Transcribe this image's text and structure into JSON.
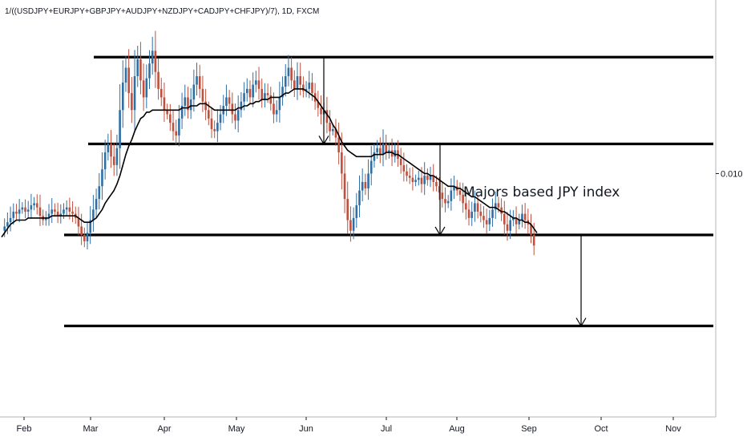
{
  "chart_data": {
    "type": "candlestick",
    "title": "1/((USDJPY+EURJPY+GBPJPY+AUDJPY+NZDJPY+CADJPY+CHFJPY)/7), 1D, FXCM",
    "x_tick_labels": [
      "Feb",
      "Mar",
      "Apr",
      "May",
      "Jun",
      "Jul",
      "Aug",
      "Sep",
      "Oct",
      "Nov"
    ],
    "y_tick_labels": [
      {
        "value": 0.01,
        "label": "0.010"
      }
    ],
    "ylim": [
      0.00885,
      0.01082
    ],
    "annotation": "Majors based JPY index",
    "colors": {
      "up": "#2e6fa6",
      "down": "#c0503d",
      "ma": "#000000",
      "level": "#000000",
      "axis": "#131722"
    },
    "levels": [
      {
        "value": 0.01055,
        "from": "Mar",
        "to": "Nov"
      },
      {
        "value": 0.01014,
        "from": "Mar",
        "to": "Nov"
      },
      {
        "value": 0.00971,
        "from": "Feb",
        "to": "Nov"
      },
      {
        "value": 0.00928,
        "from": "Feb",
        "to": "Nov"
      }
    ],
    "projection_arrows": [
      {
        "x": "Jun",
        "from": 0.01055,
        "to": 0.01014
      },
      {
        "x": "Jul",
        "from": 0.01014,
        "to": 0.00971
      },
      {
        "x": "Sep",
        "from": 0.00971,
        "to": 0.00928
      }
    ],
    "series": {
      "close": [
        0.00973,
        0.00975,
        0.00977,
        0.00979,
        0.00982,
        0.00981,
        0.00983,
        0.00984,
        0.00982,
        0.00983,
        0.00985,
        0.00986,
        0.00984,
        0.0098,
        0.00978,
        0.00979,
        0.00981,
        0.00983,
        0.00982,
        0.0098,
        0.00981,
        0.00983,
        0.00984,
        0.00982,
        0.00981,
        0.00979,
        0.00975,
        0.00971,
        0.00968,
        0.00972,
        0.00978,
        0.00983,
        0.00988,
        0.00994,
        0.01002,
        0.0101,
        0.01014,
        0.01008,
        0.01004,
        0.01012,
        0.0103,
        0.01043,
        0.0105,
        0.01038,
        0.0103,
        0.01046,
        0.01054,
        0.01044,
        0.01036,
        0.01045,
        0.01052,
        0.01058,
        0.01048,
        0.0104,
        0.01036,
        0.0103,
        0.01028,
        0.01024,
        0.0102,
        0.01018,
        0.01026,
        0.01032,
        0.01036,
        0.0103,
        0.01035,
        0.01042,
        0.01046,
        0.0104,
        0.01034,
        0.0103,
        0.01026,
        0.01021,
        0.0102,
        0.01024,
        0.01028,
        0.01032,
        0.01036,
        0.01033,
        0.01028,
        0.01025,
        0.0103,
        0.01034,
        0.01038,
        0.0104,
        0.01036,
        0.01042,
        0.01044,
        0.0104,
        0.01035,
        0.01038,
        0.01037,
        0.01033,
        0.01028,
        0.0103,
        0.01036,
        0.01041,
        0.01046,
        0.0105,
        0.01044,
        0.0104,
        0.01046,
        0.01042,
        0.01039,
        0.0104,
        0.01043,
        0.01038,
        0.01034,
        0.01031,
        0.01028,
        0.0103,
        0.01024,
        0.0102,
        0.01021,
        0.01017,
        0.0101,
        0.01,
        0.00988,
        0.00978,
        0.00973,
        0.00979,
        0.00985,
        0.00992,
        0.00996,
        0.00993,
        0.01,
        0.01006,
        0.0101,
        0.01012,
        0.01009,
        0.01014,
        0.0101,
        0.01011,
        0.01008,
        0.01011,
        0.01007,
        0.01004,
        0.01001,
        0.00999,
        0.00998,
        0.00996,
        0.00997,
        0.00998,
        0.00995,
        0.00999,
        0.00997,
        0.00999,
        0.00996,
        0.00994,
        0.00991,
        0.00988,
        0.00986,
        0.00987,
        0.00992,
        0.00994,
        0.00992,
        0.0099,
        0.00986,
        0.00983,
        0.00979,
        0.00982,
        0.00986,
        0.00982,
        0.0098,
        0.00978,
        0.00976,
        0.00979,
        0.00983,
        0.00986,
        0.00984,
        0.00981,
        0.00976,
        0.00973,
        0.00978,
        0.00979,
        0.00976,
        0.00978,
        0.00981,
        0.00978,
        0.00976,
        0.00971,
        0.00966
      ],
      "ma": [
        0.0097,
        0.00972,
        0.00974,
        0.00976,
        0.00977,
        0.00978,
        0.00978,
        0.00978,
        0.00978,
        0.00979,
        0.00979,
        0.00979,
        0.00979,
        0.00979,
        0.00979,
        0.00979,
        0.00979,
        0.0098,
        0.0098,
        0.0098,
        0.0098,
        0.0098,
        0.0098,
        0.0098,
        0.0098,
        0.0098,
        0.00979,
        0.00978,
        0.00977,
        0.00977,
        0.00977,
        0.00978,
        0.00979,
        0.00981,
        0.00983,
        0.00986,
        0.00988,
        0.0099,
        0.00992,
        0.00995,
        0.00999,
        0.01004,
        0.01009,
        0.01013,
        0.01016,
        0.0102,
        0.01023,
        0.01026,
        0.01027,
        0.01029,
        0.01029,
        0.0103,
        0.0103,
        0.0103,
        0.0103,
        0.0103,
        0.0103,
        0.0103,
        0.0103,
        0.0103,
        0.0103,
        0.01031,
        0.01031,
        0.01031,
        0.01032,
        0.01032,
        0.01032,
        0.01033,
        0.01033,
        0.01033,
        0.01032,
        0.01031,
        0.0103,
        0.0103,
        0.0103,
        0.0103,
        0.0103,
        0.0103,
        0.0103,
        0.0103,
        0.01031,
        0.01031,
        0.01032,
        0.01032,
        0.01033,
        0.01033,
        0.01034,
        0.01034,
        0.01035,
        0.01035,
        0.01035,
        0.01036,
        0.01036,
        0.01036,
        0.01036,
        0.01037,
        0.01038,
        0.01038,
        0.01039,
        0.0104,
        0.0104,
        0.0104,
        0.0104,
        0.01039,
        0.01038,
        0.01037,
        0.01036,
        0.01034,
        0.01032,
        0.0103,
        0.01028,
        0.01026,
        0.01023,
        0.01021,
        0.01018,
        0.01015,
        0.01013,
        0.01011,
        0.0101,
        0.01009,
        0.01008,
        0.01008,
        0.01008,
        0.01008,
        0.01008,
        0.01008,
        0.01009,
        0.01009,
        0.01009,
        0.01009,
        0.0101,
        0.0101,
        0.0101,
        0.01009,
        0.01009,
        0.01008,
        0.01007,
        0.01006,
        0.01005,
        0.01004,
        0.01003,
        0.01002,
        0.01001,
        0.01,
        0.01,
        0.00999,
        0.00999,
        0.00998,
        0.00997,
        0.00996,
        0.00995,
        0.00994,
        0.00994,
        0.00994,
        0.00993,
        0.00993,
        0.00992,
        0.00991,
        0.0099,
        0.00989,
        0.00989,
        0.00988,
        0.00987,
        0.00986,
        0.00985,
        0.00984,
        0.00984,
        0.00984,
        0.00983,
        0.00982,
        0.00982,
        0.00981,
        0.0098,
        0.00979,
        0.00979,
        0.00978,
        0.00978,
        0.00977,
        0.00977,
        0.00976,
        0.00974,
        0.00972
      ]
    }
  }
}
